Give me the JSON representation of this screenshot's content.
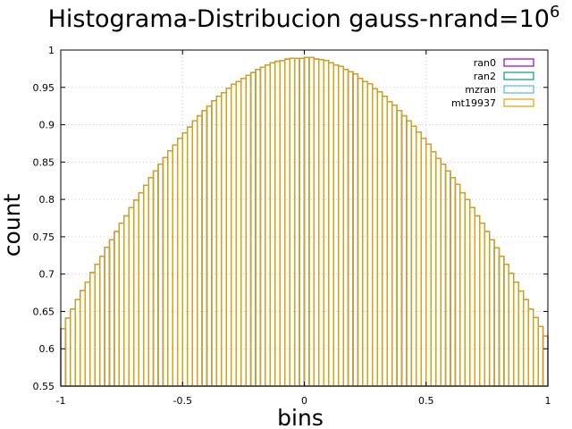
{
  "chart_data": {
    "type": "bar",
    "title": "Histograma-Distribucion gauss-nrand=10",
    "title_superscript": "6",
    "xlabel": "bins",
    "ylabel": "count",
    "xlim": [
      -1,
      1
    ],
    "ylim": [
      0.55,
      1
    ],
    "xticks": [
      "-1",
      "-0.5",
      "0",
      "0.5",
      "1"
    ],
    "yticks": [
      "0.55",
      "0.6",
      "0.65",
      "0.7",
      "0.75",
      "0.8",
      "0.85",
      "0.9",
      "0.95",
      "1"
    ],
    "grid": true,
    "legend_position": "top-right",
    "bins": 100,
    "series": [
      {
        "name": "ran0",
        "color": "#9400d3",
        "values": [
          0.627,
          0.641,
          0.653,
          0.666,
          0.678,
          0.689,
          0.702,
          0.713,
          0.724,
          0.736,
          0.746,
          0.757,
          0.768,
          0.778,
          0.789,
          0.799,
          0.809,
          0.819,
          0.829,
          0.838,
          0.847,
          0.856,
          0.865,
          0.873,
          0.882,
          0.889,
          0.897,
          0.905,
          0.912,
          0.919,
          0.925,
          0.932,
          0.938,
          0.943,
          0.949,
          0.954,
          0.958,
          0.962,
          0.966,
          0.97,
          0.974,
          0.977,
          0.98,
          0.983,
          0.985,
          0.986,
          0.988,
          0.989,
          0.989,
          0.989,
          0.99,
          0.99,
          0.988,
          0.987,
          0.986,
          0.983,
          0.98,
          0.978,
          0.974,
          0.971,
          0.968,
          0.962,
          0.958,
          0.955,
          0.948,
          0.944,
          0.938,
          0.931,
          0.926,
          0.919,
          0.912,
          0.905,
          0.898,
          0.89,
          0.882,
          0.874,
          0.864,
          0.855,
          0.847,
          0.838,
          0.829,
          0.82,
          0.809,
          0.8,
          0.789,
          0.778,
          0.768,
          0.757,
          0.746,
          0.735,
          0.724,
          0.713,
          0.701,
          0.689,
          0.677,
          0.666,
          0.653,
          0.642,
          0.63,
          0.617
        ]
      },
      {
        "name": "ran2",
        "color": "#009e73",
        "values": [
          0.627,
          0.641,
          0.653,
          0.666,
          0.678,
          0.689,
          0.702,
          0.713,
          0.724,
          0.736,
          0.746,
          0.757,
          0.768,
          0.778,
          0.789,
          0.799,
          0.809,
          0.819,
          0.829,
          0.838,
          0.847,
          0.856,
          0.865,
          0.873,
          0.882,
          0.889,
          0.897,
          0.905,
          0.912,
          0.919,
          0.925,
          0.932,
          0.938,
          0.943,
          0.949,
          0.954,
          0.958,
          0.962,
          0.966,
          0.97,
          0.974,
          0.977,
          0.98,
          0.983,
          0.985,
          0.986,
          0.988,
          0.989,
          0.989,
          0.989,
          0.99,
          0.99,
          0.988,
          0.987,
          0.986,
          0.983,
          0.98,
          0.978,
          0.974,
          0.971,
          0.968,
          0.962,
          0.958,
          0.955,
          0.948,
          0.944,
          0.938,
          0.931,
          0.926,
          0.919,
          0.912,
          0.905,
          0.898,
          0.89,
          0.882,
          0.874,
          0.864,
          0.855,
          0.847,
          0.838,
          0.829,
          0.82,
          0.809,
          0.8,
          0.789,
          0.778,
          0.768,
          0.757,
          0.746,
          0.735,
          0.724,
          0.713,
          0.701,
          0.689,
          0.677,
          0.666,
          0.653,
          0.642,
          0.63,
          0.617
        ]
      },
      {
        "name": "mzran",
        "color": "#56b4e9",
        "values": [
          0.627,
          0.641,
          0.653,
          0.666,
          0.678,
          0.689,
          0.702,
          0.713,
          0.724,
          0.736,
          0.746,
          0.757,
          0.768,
          0.778,
          0.789,
          0.799,
          0.809,
          0.819,
          0.829,
          0.838,
          0.847,
          0.856,
          0.865,
          0.873,
          0.882,
          0.889,
          0.897,
          0.905,
          0.912,
          0.919,
          0.925,
          0.932,
          0.938,
          0.943,
          0.949,
          0.954,
          0.958,
          0.962,
          0.966,
          0.97,
          0.974,
          0.977,
          0.98,
          0.983,
          0.985,
          0.986,
          0.988,
          0.989,
          0.989,
          0.989,
          0.99,
          0.99,
          0.988,
          0.987,
          0.986,
          0.983,
          0.98,
          0.978,
          0.974,
          0.971,
          0.968,
          0.962,
          0.958,
          0.955,
          0.948,
          0.944,
          0.938,
          0.931,
          0.926,
          0.919,
          0.912,
          0.905,
          0.898,
          0.89,
          0.882,
          0.874,
          0.864,
          0.855,
          0.847,
          0.838,
          0.829,
          0.82,
          0.809,
          0.8,
          0.789,
          0.778,
          0.768,
          0.757,
          0.746,
          0.735,
          0.724,
          0.713,
          0.701,
          0.689,
          0.677,
          0.666,
          0.653,
          0.642,
          0.63,
          0.617
        ]
      },
      {
        "name": "mt19937",
        "color": "#e69f00",
        "values": [
          0.627,
          0.641,
          0.653,
          0.666,
          0.678,
          0.689,
          0.702,
          0.713,
          0.724,
          0.736,
          0.746,
          0.757,
          0.768,
          0.778,
          0.789,
          0.799,
          0.809,
          0.819,
          0.829,
          0.838,
          0.847,
          0.856,
          0.865,
          0.873,
          0.882,
          0.889,
          0.897,
          0.905,
          0.912,
          0.919,
          0.925,
          0.932,
          0.938,
          0.943,
          0.949,
          0.954,
          0.958,
          0.962,
          0.966,
          0.97,
          0.974,
          0.977,
          0.98,
          0.983,
          0.985,
          0.986,
          0.988,
          0.989,
          0.989,
          0.989,
          0.99,
          0.99,
          0.988,
          0.987,
          0.986,
          0.983,
          0.98,
          0.978,
          0.974,
          0.971,
          0.968,
          0.962,
          0.958,
          0.955,
          0.948,
          0.944,
          0.938,
          0.931,
          0.926,
          0.919,
          0.912,
          0.905,
          0.898,
          0.89,
          0.882,
          0.874,
          0.864,
          0.855,
          0.847,
          0.838,
          0.829,
          0.82,
          0.809,
          0.8,
          0.789,
          0.778,
          0.768,
          0.757,
          0.746,
          0.735,
          0.724,
          0.713,
          0.701,
          0.689,
          0.677,
          0.666,
          0.653,
          0.642,
          0.63,
          0.617
        ]
      }
    ]
  }
}
